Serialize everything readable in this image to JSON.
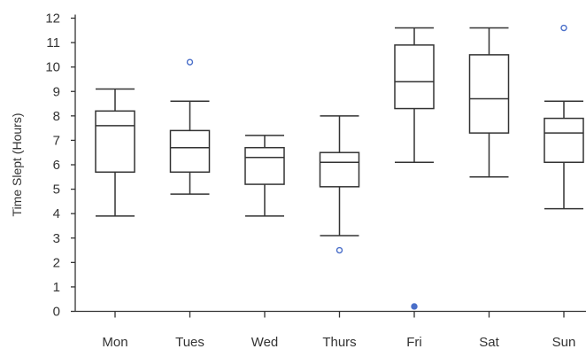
{
  "chart_data": {
    "type": "box",
    "title": "",
    "xlabel": "",
    "ylabel": "Time Slept (Hours)",
    "ylim": [
      0,
      12
    ],
    "yticks": [
      0,
      1,
      2,
      3,
      4,
      5,
      6,
      7,
      8,
      9,
      10,
      11,
      12
    ],
    "categories": [
      "Mon",
      "Tues",
      "Wed",
      "Thurs",
      "Fri",
      "Sat",
      "Sun"
    ],
    "boxes": [
      {
        "category": "Mon",
        "min": 3.9,
        "q1": 5.7,
        "median": 7.6,
        "q3": 8.2,
        "max": 9.1,
        "outliers": []
      },
      {
        "category": "Tues",
        "min": 4.8,
        "q1": 5.7,
        "median": 6.7,
        "q3": 7.4,
        "max": 8.6,
        "outliers": [
          10.2
        ]
      },
      {
        "category": "Wed",
        "min": 3.9,
        "q1": 5.2,
        "median": 6.3,
        "q3": 6.7,
        "max": 7.2,
        "outliers": []
      },
      {
        "category": "Thurs",
        "min": 3.1,
        "q1": 5.1,
        "median": 6.1,
        "q3": 6.5,
        "max": 8.0,
        "outliers": [
          2.5
        ]
      },
      {
        "category": "Fri",
        "min": 6.1,
        "q1": 8.3,
        "median": 9.4,
        "q3": 10.9,
        "max": 11.6,
        "outliers": [
          0.2
        ]
      },
      {
        "category": "Sat",
        "min": 5.5,
        "q1": 7.3,
        "median": 8.7,
        "q3": 10.5,
        "max": 11.6,
        "outliers": []
      },
      {
        "category": "Sun",
        "min": 4.2,
        "q1": 6.1,
        "median": 7.3,
        "q3": 7.9,
        "max": 8.6,
        "outliers": [
          11.6
        ]
      }
    ],
    "grid": false,
    "colors": {
      "box": "#333333",
      "outlier": "#4a6fc9",
      "axis": "#333333"
    }
  }
}
